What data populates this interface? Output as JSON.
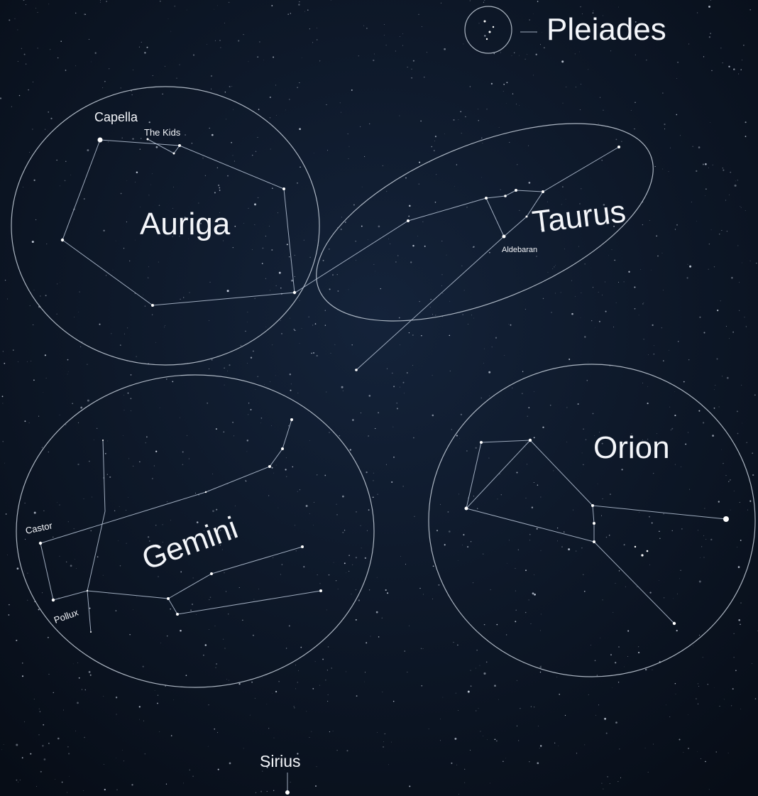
{
  "labels": {
    "pleiades": "Pleiades",
    "constellations": [
      "Auriga",
      "Taurus",
      "Gemini",
      "Orion"
    ],
    "stars": [
      "Capella",
      "The Kids",
      "Aldebaran",
      "Castor",
      "Pollux",
      "Sirius"
    ]
  }
}
